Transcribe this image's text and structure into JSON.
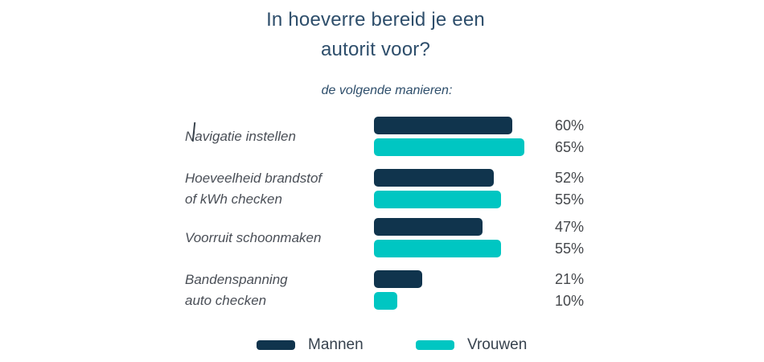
{
  "title": {
    "line1": "In hoeverre bereid je een",
    "line2": "autorit voor?"
  },
  "subtitle": "de volgende manieren:",
  "colors": {
    "mannen": "#10344d",
    "vrouwen": "#00c6c2",
    "title_text": "#2e4e6b",
    "category_text": "#4a4f57",
    "value_text": "#45484c"
  },
  "chart_data": {
    "type": "bar",
    "orientation": "horizontal",
    "title": "In hoeverre bereid je een autorit voor?",
    "subtitle": "de volgende manieren:",
    "categories": [
      "Navigatie instellen",
      "Hoeveelheid brandstof of kWh checken",
      "Voorruit schoonmaken",
      "Bandenspanning auto checken"
    ],
    "series": [
      {
        "name": "Mannen",
        "color": "#10344d",
        "values": [
          60,
          52,
          47,
          21
        ]
      },
      {
        "name": "Vrouwen",
        "color": "#00c6c2",
        "values": [
          65,
          55,
          55,
          10
        ]
      }
    ],
    "value_label_format": "percent",
    "xlim": [
      0,
      100
    ],
    "grid": false,
    "legend_position": "bottom"
  },
  "rows": [
    {
      "label_line1": "Navigatie instellen",
      "label_line2": "",
      "mannen_value": 60,
      "vrouwen_value": 65,
      "mannen_label": "60%",
      "vrouwen_label": "65%"
    },
    {
      "label_line1": "Hoeveelheid brandstof",
      "label_line2": "of kWh checken",
      "mannen_value": 52,
      "vrouwen_value": 55,
      "mannen_label": "52%",
      "vrouwen_label": "55%"
    },
    {
      "label_line1": "Voorruit schoonmaken",
      "label_line2": "",
      "mannen_value": 47,
      "vrouwen_value": 55,
      "mannen_label": "47%",
      "vrouwen_label": "55%"
    },
    {
      "label_line1": "Bandenspanning",
      "label_line2": "auto checken",
      "mannen_value": 21,
      "vrouwen_value": 10,
      "mannen_label": "21%",
      "vrouwen_label": "10%"
    }
  ],
  "legend": {
    "items": [
      {
        "label": "Mannen",
        "color": "#10344d"
      },
      {
        "label": "Vrouwen",
        "color": "#00c6c2"
      }
    ]
  }
}
